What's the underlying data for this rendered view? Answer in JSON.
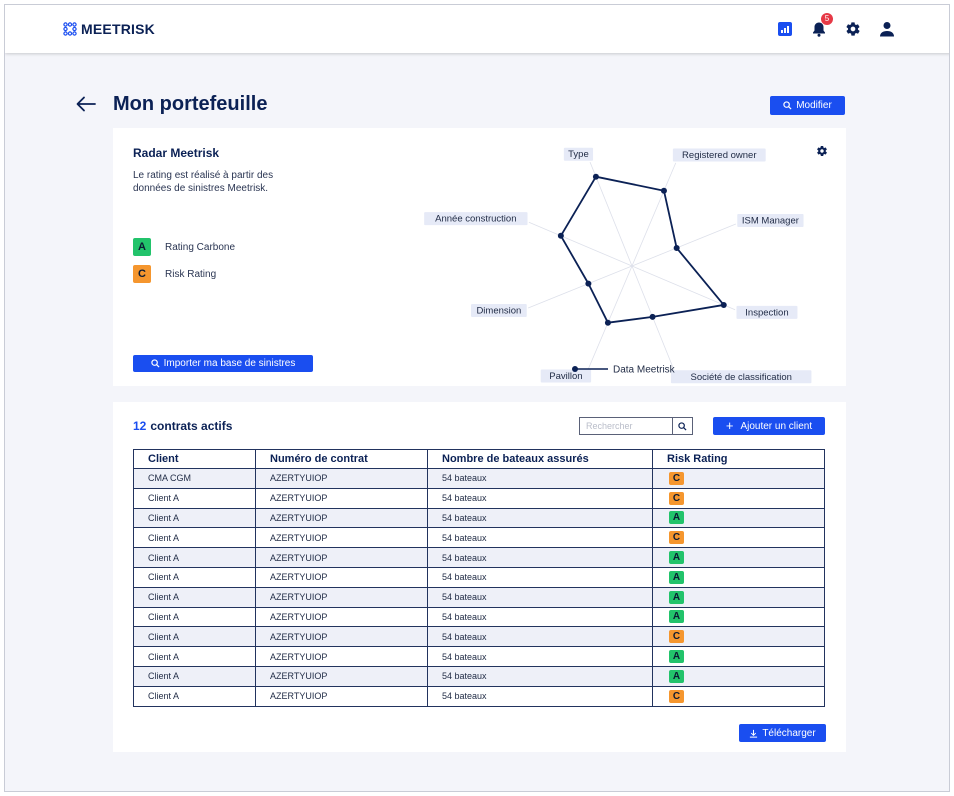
{
  "app": {
    "name": "MEETRISK"
  },
  "header": {
    "icons": [
      "chart-icon",
      "bell-icon",
      "gear-icon",
      "user-icon"
    ],
    "notification_count": "5"
  },
  "page": {
    "title": "Mon portefeuille",
    "modify_label": "Modifier"
  },
  "radar": {
    "title": "Radar Meetrisk",
    "description": "Le rating est réalisé à partir des données de sinistres Meetrisk.",
    "ratings": [
      {
        "grade": "A",
        "label": "Rating Carbone",
        "color": "#22c36b"
      },
      {
        "grade": "C",
        "label": "Risk Rating",
        "color": "#f5962e"
      }
    ],
    "import_label": "Importer ma base de sinistres",
    "legend_label": "Data Meetrisk"
  },
  "chart_data": {
    "type": "radar",
    "axes": [
      "Type",
      "Registered owner",
      "ISM Manager",
      "Inspection",
      "Société de classification",
      "Pavillon",
      "Dimension",
      "Année construction"
    ],
    "series": [
      {
        "name": "Data Meetrisk",
        "values": [
          0.86,
          0.73,
          0.43,
          0.89,
          0.49,
          0.55,
          0.42,
          0.69
        ]
      }
    ],
    "max": 1,
    "legend": "bottom"
  },
  "table": {
    "count": "12",
    "title": "contrats actifs",
    "search_placeholder": "Rechercher",
    "add_label": "Ajouter un client",
    "columns": [
      "Client",
      "Numéro de contrat",
      "Nombre de bateaux assurés",
      "Risk Rating"
    ],
    "rows": [
      {
        "client": "CMA CGM",
        "contract": "AZERTYUIOP",
        "boats": "54 bateaux",
        "rating": "C"
      },
      {
        "client": "Client A",
        "contract": "AZERTYUIOP",
        "boats": "54 bateaux",
        "rating": "C"
      },
      {
        "client": "Client A",
        "contract": "AZERTYUIOP",
        "boats": "54 bateaux",
        "rating": "A"
      },
      {
        "client": "Client A",
        "contract": "AZERTYUIOP",
        "boats": "54 bateaux",
        "rating": "C"
      },
      {
        "client": "Client A",
        "contract": "AZERTYUIOP",
        "boats": "54 bateaux",
        "rating": "A"
      },
      {
        "client": "Client A",
        "contract": "AZERTYUIOP",
        "boats": "54 bateaux",
        "rating": "A"
      },
      {
        "client": "Client A",
        "contract": "AZERTYUIOP",
        "boats": "54 bateaux",
        "rating": "A"
      },
      {
        "client": "Client A",
        "contract": "AZERTYUIOP",
        "boats": "54 bateaux",
        "rating": "A"
      },
      {
        "client": "Client A",
        "contract": "AZERTYUIOP",
        "boats": "54 bateaux",
        "rating": "C"
      },
      {
        "client": "Client A",
        "contract": "AZERTYUIOP",
        "boats": "54 bateaux",
        "rating": "A"
      },
      {
        "client": "Client A",
        "contract": "AZERTYUIOP",
        "boats": "54 bateaux",
        "rating": "A"
      },
      {
        "client": "Client A",
        "contract": "AZERTYUIOP",
        "boats": "54 bateaux",
        "rating": "C"
      }
    ],
    "download_label": "Télécharger"
  },
  "colors": {
    "primary": "#1a4ef0",
    "navy": "#0b2155",
    "grade_A": "#22c36b",
    "grade_C": "#f5962e",
    "notification": "#e63946"
  }
}
